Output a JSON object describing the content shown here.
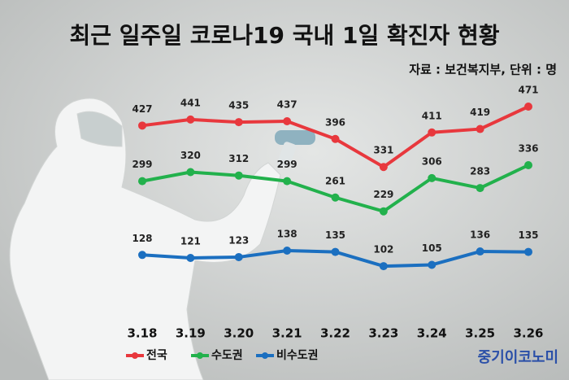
{
  "chart_data": {
    "type": "line",
    "title": "최근 일주일 코로나19 국내 1일 확진자 현황",
    "subtitle": "자료 : 보건복지부, 단위 : 명",
    "categories": [
      "3.18",
      "3.19",
      "3.20",
      "3.21",
      "3.22",
      "3.23",
      "3.24",
      "3.25",
      "3.26"
    ],
    "series": [
      {
        "name": "전국",
        "color": "#e8383d",
        "values": [
          427,
          441,
          435,
          437,
          396,
          331,
          411,
          419,
          471
        ]
      },
      {
        "name": "수도권",
        "color": "#22b14c",
        "values": [
          299,
          320,
          312,
          299,
          261,
          229,
          306,
          283,
          336
        ]
      },
      {
        "name": "비수도권",
        "color": "#1b6fc0",
        "values": [
          128,
          121,
          123,
          138,
          135,
          102,
          105,
          136,
          135
        ]
      }
    ],
    "source_logo": "중기이코노미"
  }
}
